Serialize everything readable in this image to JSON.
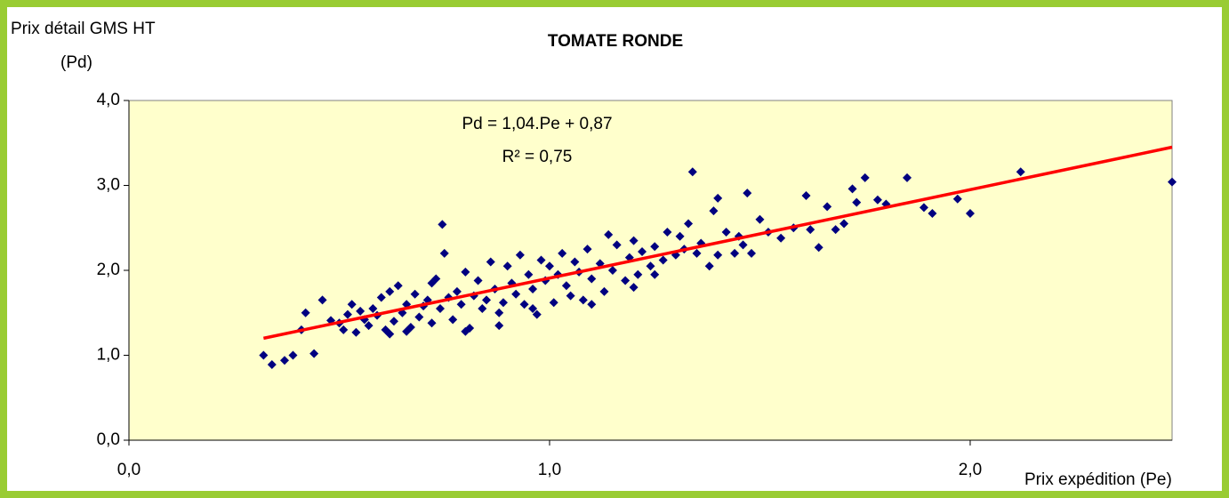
{
  "chart_data": {
    "type": "scatter",
    "title": "TOMATE RONDE",
    "y_label": [
      "Prix détail GMS HT",
      "(Pd)"
    ],
    "x_label": "Prix expédition (Pe)",
    "annotations": [
      "Pd = 1,04.Pe + 0,87",
      "R² = 0,75"
    ],
    "color": "#000080",
    "background": "#ffffcc",
    "xlim": [
      0,
      2.48
    ],
    "ylim": [
      0,
      4
    ],
    "xticks": [
      {
        "value": 0,
        "label": "0,0"
      },
      {
        "value": 1,
        "label": "1,0"
      },
      {
        "value": 2,
        "label": "2,0"
      }
    ],
    "yticks": [
      {
        "value": 0,
        "label": "0,0"
      },
      {
        "value": 1,
        "label": "1,0"
      },
      {
        "value": 2,
        "label": "2,0"
      },
      {
        "value": 3,
        "label": "3,0"
      },
      {
        "value": 4,
        "label": "4,0"
      }
    ],
    "trendline": {
      "x": [
        0.32,
        2.48
      ],
      "y": [
        1.2,
        3.45
      ],
      "color": "#ff0000"
    },
    "x": [
      0.32,
      0.34,
      0.37,
      0.39,
      0.42,
      0.44,
      0.41,
      0.46,
      0.48,
      0.745,
      1.34,
      2.48,
      2.12,
      1.85,
      1.75,
      2.0,
      1.97,
      1.91,
      1.89,
      1.72,
      1.78,
      1.47,
      1.4,
      1.64,
      1.61,
      1.66,
      1.48,
      1.55,
      1.68,
      0.5,
      0.51,
      0.52,
      0.53,
      0.54,
      0.55,
      0.56,
      0.57,
      0.58,
      0.59,
      0.6,
      0.61,
      0.62,
      0.63,
      0.64,
      0.65,
      0.66,
      0.67,
      0.68,
      0.69,
      0.7,
      0.71,
      0.72,
      0.73,
      0.74,
      0.75,
      0.76,
      0.77,
      0.78,
      0.79,
      0.8,
      0.81,
      0.82,
      0.83,
      0.84,
      0.85,
      0.86,
      0.87,
      0.88,
      0.89,
      0.9,
      0.91,
      0.92,
      0.93,
      0.94,
      0.95,
      0.96,
      0.97,
      0.98,
      0.99,
      1.0,
      1.01,
      1.02,
      1.03,
      1.04,
      1.05,
      1.06,
      1.07,
      1.08,
      1.09,
      1.1,
      1.12,
      1.13,
      1.14,
      1.15,
      1.16,
      1.18,
      1.19,
      1.2,
      1.21,
      1.22,
      1.24,
      1.25,
      1.27,
      1.28,
      1.3,
      1.31,
      1.32,
      1.33,
      1.35,
      1.36,
      1.38,
      1.39,
      1.4,
      1.42,
      1.44,
      1.46,
      1.5,
      1.52,
      1.58,
      1.62,
      1.7,
      1.73,
      1.8,
      1.45,
      0.62,
      0.66,
      0.72,
      0.8,
      0.88,
      0.96,
      1.1,
      1.2,
      1.25
    ],
    "values": [
      1.0,
      0.89,
      0.94,
      1.0,
      1.5,
      1.02,
      1.3,
      1.65,
      1.41,
      2.54,
      3.16,
      3.04,
      3.16,
      3.09,
      3.09,
      2.67,
      2.84,
      2.67,
      2.74,
      2.96,
      2.83,
      2.91,
      2.85,
      2.27,
      2.88,
      2.75,
      2.2,
      2.38,
      2.48,
      1.38,
      1.3,
      1.48,
      1.6,
      1.27,
      1.52,
      1.42,
      1.35,
      1.55,
      1.47,
      1.68,
      1.3,
      1.75,
      1.4,
      1.82,
      1.5,
      1.6,
      1.33,
      1.72,
      1.45,
      1.58,
      1.65,
      1.38,
      1.9,
      1.55,
      2.2,
      1.68,
      1.42,
      1.75,
      1.6,
      1.98,
      1.32,
      1.7,
      1.88,
      1.55,
      1.65,
      2.1,
      1.78,
      1.5,
      1.62,
      2.05,
      1.85,
      1.72,
      2.18,
      1.6,
      1.95,
      1.78,
      1.48,
      2.12,
      1.88,
      2.05,
      1.62,
      1.95,
      2.2,
      1.82,
      1.7,
      2.1,
      1.98,
      1.65,
      2.25,
      1.9,
      2.08,
      1.75,
      2.42,
      2.0,
      2.3,
      1.88,
      2.15,
      2.35,
      1.95,
      2.22,
      2.05,
      2.28,
      2.12,
      2.45,
      2.18,
      2.4,
      2.25,
      2.55,
      2.2,
      2.32,
      2.05,
      2.7,
      2.18,
      2.45,
      2.2,
      2.3,
      2.6,
      2.45,
      2.5,
      2.48,
      2.55,
      2.8,
      2.78,
      2.4,
      1.25,
      1.28,
      1.85,
      1.28,
      1.35,
      1.55,
      1.6,
      1.8,
      1.95
    ]
  }
}
